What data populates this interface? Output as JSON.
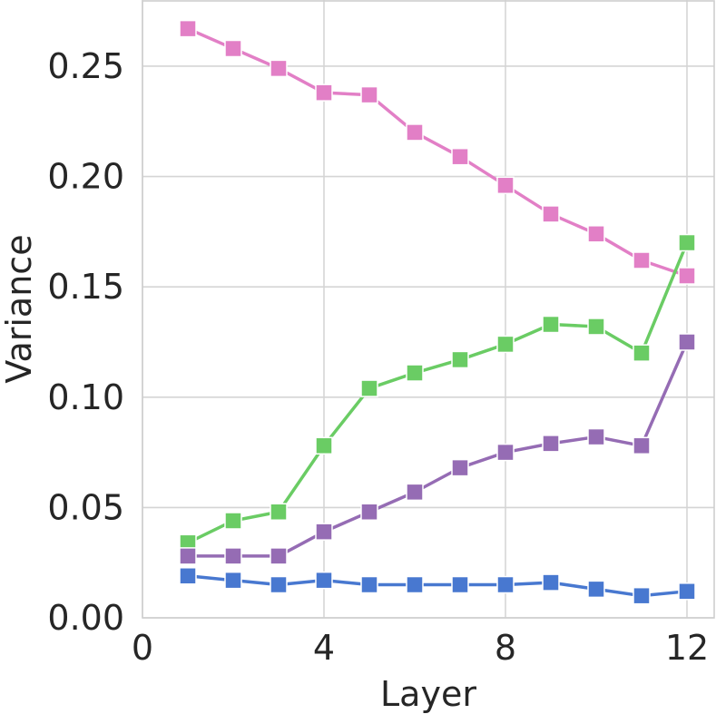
{
  "chart_data": {
    "type": "line",
    "xlabel": "Layer",
    "ylabel": "Variance",
    "xlim": [
      0,
      12.6
    ],
    "ylim": [
      0,
      0.28
    ],
    "xticks": [
      0,
      4,
      8,
      12
    ],
    "yticks": [
      0.0,
      0.05,
      0.1,
      0.15,
      0.2,
      0.25
    ],
    "xtick_labels": [
      "0",
      "4",
      "8",
      "12"
    ],
    "ytick_labels": [
      "0.00",
      "0.05",
      "0.10",
      "0.15",
      "0.20",
      "0.25"
    ],
    "grid": true,
    "legend": "none",
    "marker": "square",
    "x": [
      1,
      2,
      3,
      4,
      5,
      6,
      7,
      8,
      9,
      10,
      11,
      12
    ],
    "series": [
      {
        "color": "#e27fc6",
        "values": [
          0.267,
          0.258,
          0.249,
          0.238,
          0.237,
          0.22,
          0.209,
          0.196,
          0.183,
          0.174,
          0.162,
          0.155
        ]
      },
      {
        "color": "#6acc64",
        "values": [
          0.034,
          0.044,
          0.048,
          0.078,
          0.104,
          0.111,
          0.117,
          0.124,
          0.133,
          0.132,
          0.12,
          0.17
        ]
      },
      {
        "color": "#956cb4",
        "values": [
          0.028,
          0.028,
          0.028,
          0.039,
          0.048,
          0.057,
          0.068,
          0.075,
          0.079,
          0.082,
          0.078,
          0.125
        ]
      },
      {
        "color": "#4878d0",
        "values": [
          0.019,
          0.017,
          0.015,
          0.017,
          0.015,
          0.015,
          0.015,
          0.015,
          0.016,
          0.013,
          0.01,
          0.012
        ]
      }
    ]
  }
}
